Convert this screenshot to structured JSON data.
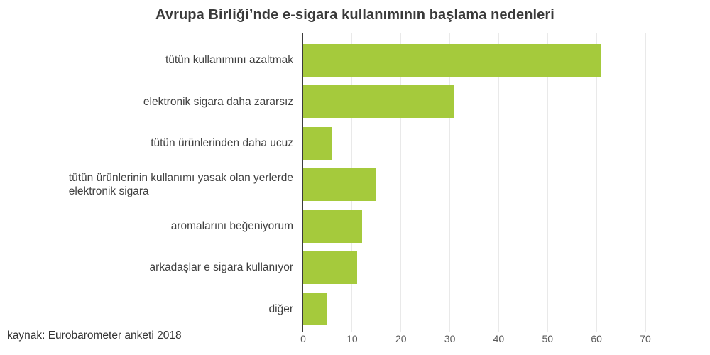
{
  "colors": {
    "bar": "#a5ca3c",
    "axis": "#3c3c3c",
    "grid": "#e9e9e9",
    "tick_label": "#595959",
    "category_label": "#3f3f3f",
    "title": "#3a3a3a",
    "source": "#333333",
    "background": "#ffffff"
  },
  "chart_data": {
    "type": "bar",
    "orientation": "horizontal",
    "title": "Avrupa Birliği’nde e-sigara kullanımının başlama nedenleri",
    "categories": [
      "tütün kullanımını azaltmak",
      "elektronik sigara daha zararsız",
      "tütün ürünlerinden daha ucuz",
      "tütün ürünlerinin kullanımı yasak olan yerlerde\nelektronik sigara",
      "aromalarını beğeniyorum",
      "arkadaşlar e sigara kullanıyor",
      "diğer"
    ],
    "values": [
      61,
      31,
      6,
      15,
      12,
      11,
      5
    ],
    "xlabel": "",
    "ylabel": "",
    "xticks": [
      0,
      10,
      20,
      30,
      40,
      50,
      60,
      70
    ],
    "xlim": [
      0,
      75
    ],
    "grid": true,
    "legend": null,
    "source_annotation": "kaynak: Eurobarometer anketi 2018"
  }
}
